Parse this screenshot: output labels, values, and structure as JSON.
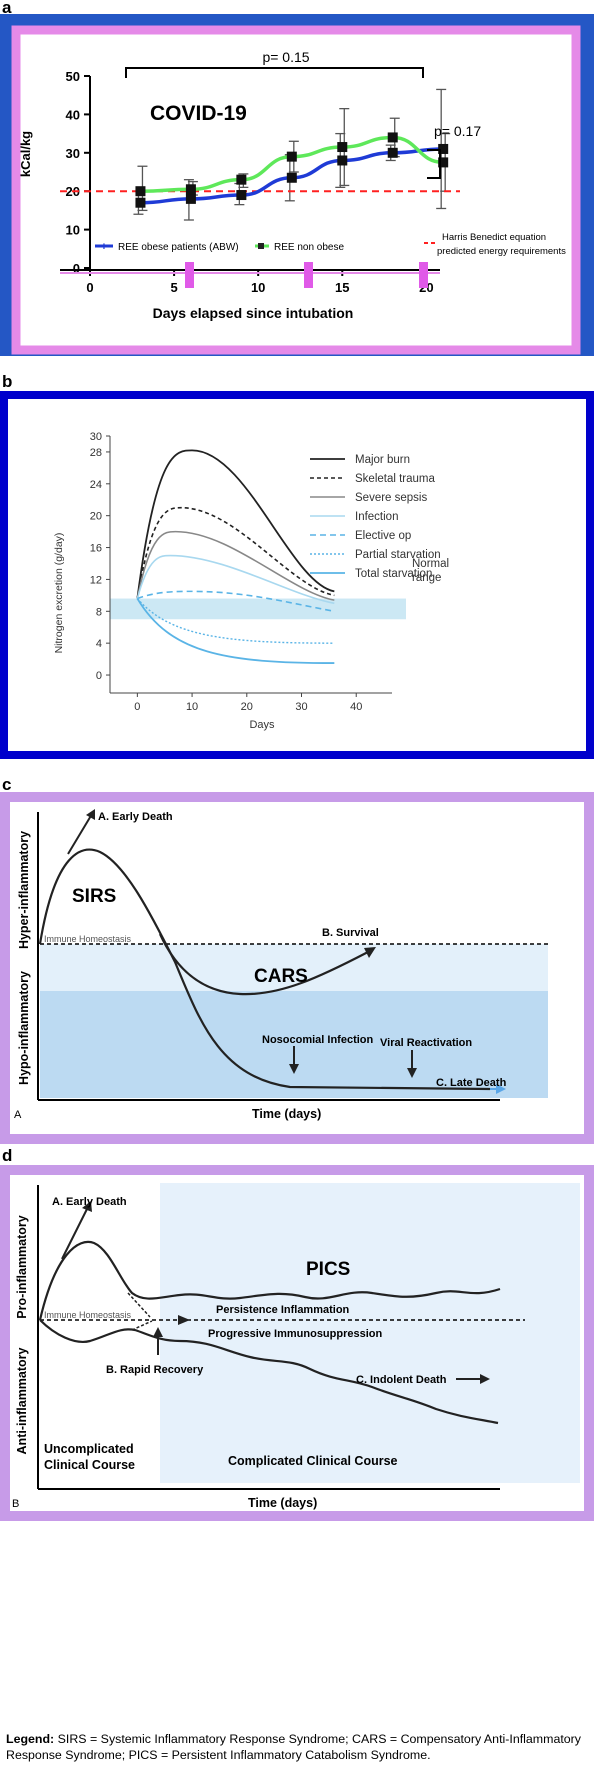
{
  "panel_labels": {
    "a": "a",
    "b": "b",
    "c": "c",
    "d": "d"
  },
  "legend_text": {
    "label": "Legend:",
    "body": "SIRS = Systemic Inflammatory Response Syndrome; CARS = Compensatory Anti-Inflammatory Response Syndrome; PICS = Persistent Inflammatory Catabolism Syndrome."
  },
  "colors": {
    "panel_a_frame": "#2457c5",
    "panel_a_inner_border": "#e58ae8",
    "obese_series": "#1f3bd6",
    "nonobese_series": "#5ee85a",
    "harris_line": "#ff2020",
    "panel_b_frame": "#0000cc",
    "normal_band": "#cce8f4",
    "panel_cd_frame": "#c79be8",
    "hypo_band": "#cfe6f7",
    "hypo_band_dark": "#a8cfee"
  },
  "chart_data": [
    {
      "type": "line",
      "title": "COVID-19",
      "xlabel": "Days elapsed since intubation",
      "ylabel": "kCal/kg",
      "xlim": [
        0,
        22
      ],
      "ylim": [
        0,
        50
      ],
      "x_ticks": [
        "0",
        "5",
        "10",
        "15",
        "20"
      ],
      "y_ticks": [
        "0",
        "10",
        "20",
        "30",
        "40",
        "50"
      ],
      "series": [
        {
          "name": "REE obese patients (ABW)",
          "x": [
            3,
            6,
            9,
            12,
            15,
            18,
            21
          ],
          "y": [
            17,
            18,
            19,
            23.5,
            28,
            30,
            31
          ],
          "err_low": [
            14,
            12.5,
            16.5,
            17.5,
            21,
            28,
            15.5
          ],
          "err_high": [
            20,
            23,
            22,
            29.5,
            35,
            32,
            46.5
          ]
        },
        {
          "name": "REE non obese",
          "x": [
            3,
            6,
            9,
            12,
            15,
            18,
            21
          ],
          "y": [
            20,
            20.5,
            23,
            29,
            31.5,
            34,
            27.5
          ],
          "err_low": [
            15,
            19,
            21,
            25,
            21.5,
            29,
            20
          ],
          "err_high": [
            26.5,
            22.5,
            24.5,
            33,
            41.5,
            39,
            35
          ]
        },
        {
          "name": "Harris Benedict equation predicted energy requirements",
          "y_const": 20
        }
      ],
      "annotations": [
        "p= 0.15",
        "p= 0.17"
      ],
      "legend_position": "bottom"
    },
    {
      "type": "line",
      "xlabel": "Days",
      "ylabel": "Nitrogen excretion (g/day)",
      "xlim": [
        -5,
        48
      ],
      "ylim": [
        -1,
        30
      ],
      "x_ticks": [
        "0",
        "10",
        "20",
        "30",
        "40"
      ],
      "y_ticks": [
        "0",
        "4",
        "8",
        "12",
        "16",
        "20",
        "24",
        "28",
        "30"
      ],
      "normal_range": [
        7,
        9.6
      ],
      "normal_range_label": "Normal range",
      "series": [
        {
          "name": "Major burn",
          "peak_day": 10,
          "peak": 28.2,
          "end": 10.5
        },
        {
          "name": "Skeletal trauma",
          "peak_day": 8,
          "peak": 21,
          "end": 10
        },
        {
          "name": "Severe sepsis",
          "peak_day": 7,
          "peak": 18,
          "end": 9.4
        },
        {
          "name": "Infection",
          "peak_day": 6,
          "peak": 15,
          "end": 9
        },
        {
          "name": "Elective op",
          "peak_day": 10,
          "peak": 10.5,
          "end": 8
        },
        {
          "name": "Partial starvation",
          "peak_day": 0,
          "peak": 9.6,
          "end": 4
        },
        {
          "name": "Total starvation",
          "peak_day": 0,
          "peak": 9.6,
          "end": 1.5
        }
      ],
      "legend_position": "top-right"
    },
    {
      "type": "line",
      "xlabel": "Time (days)",
      "ylabel_top": "Hyper-inflammatory",
      "ylabel_bottom": "Hypo-inflammatory",
      "homeostasis_label": "Immune Homeostasis",
      "labels": {
        "early_death": "A. Early Death",
        "sirs": "SIRS",
        "cars": "CARS",
        "survival": "B. Survival",
        "nosocomial": "Nosocomial Infection",
        "viral": "Viral Reactivation",
        "late_death": "C. Late Death",
        "corner": "A"
      }
    },
    {
      "type": "line",
      "xlabel": "Time (days)",
      "ylabel_top": "Pro-inflammatory",
      "ylabel_bottom": "Anti-inflammatory",
      "homeostasis_label": "Immune Homeostasis",
      "labels": {
        "early_death": "A. Early Death",
        "pics": "PICS",
        "persistence": "Persistence Inflammation",
        "progressive": "Progressive Immunosuppression",
        "indolent": "C. Indolent Death",
        "rapid": "B. Rapid Recovery",
        "uncomplicated_1": "Uncomplicated",
        "uncomplicated_2": "Clinical Course",
        "complicated": "Complicated Clinical Course",
        "corner": "B"
      }
    }
  ]
}
